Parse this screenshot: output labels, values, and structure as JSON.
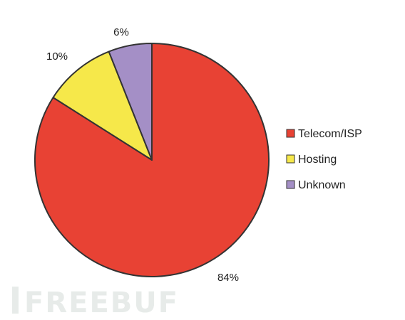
{
  "chart_data": {
    "type": "pie",
    "categories": [
      "Telecom/ISP",
      "Hosting",
      "Unknown"
    ],
    "values": [
      84,
      10,
      6
    ],
    "value_labels": [
      "84%",
      "10%",
      "6%"
    ],
    "colors": [
      "#e84234",
      "#f6e84a",
      "#a48fc6"
    ],
    "edge_color": "#333333",
    "start_angle": "12 o'clock",
    "direction": "clockwise",
    "legend": {
      "position": "right",
      "entries": [
        "Telecom/ISP",
        "Hosting",
        "Unknown"
      ]
    }
  },
  "watermark": {
    "text": "FREEBUF"
  }
}
